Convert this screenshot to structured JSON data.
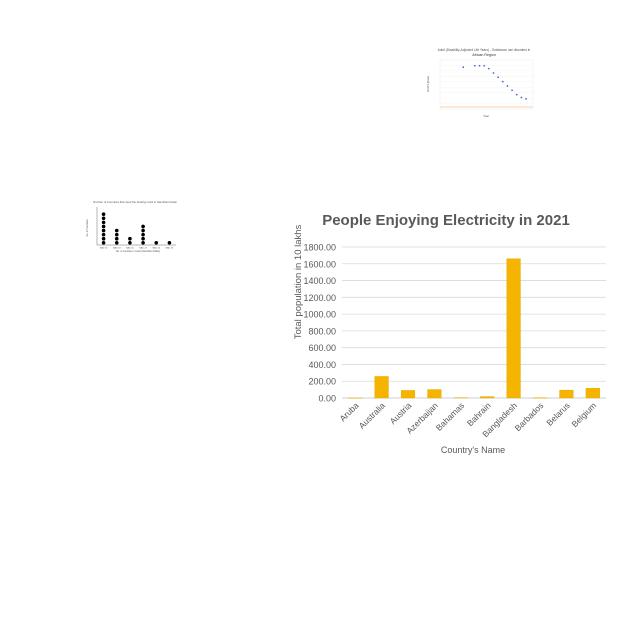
{
  "chart_data": [
    {
      "type": "bar",
      "title": "People Enjoying Electricity in 2021",
      "xlabel": "Country's Name",
      "ylabel": "Total population in 10 lakhs",
      "categories": [
        "Aruba",
        "Australia",
        "Austria",
        "Azerbaijan",
        "Bahamas",
        "Bahrain",
        "Bangladesh",
        "Barbados",
        "Belarus",
        "Belgium"
      ],
      "values": [
        0.1,
        257,
        90,
        101,
        3.9,
        17,
        1660,
        2.8,
        94,
        116
      ],
      "ylim": [
        0,
        1800
      ],
      "yticks": [
        "0.00",
        "200.00",
        "400.00",
        "600.00",
        "800.00",
        "1000.00",
        "1200.00",
        "1400.00",
        "1600.00",
        "1800.00"
      ],
      "bar_color": "#f4b400",
      "grid": true
    },
    {
      "type": "scatter",
      "title": "Adult (Disability-Adjusted Life Years) - Substance use disorders in",
      "subtitle": "African Region",
      "xlabel": "Year",
      "ylabel": "DALYs (Rate)",
      "x": [
        1995,
        2000,
        2002,
        2004,
        2006,
        2008,
        2010,
        2012,
        2014,
        2016,
        2018,
        2020,
        2022
      ],
      "values": [
        1.77,
        1.78,
        1.78,
        1.78,
        1.76,
        1.73,
        1.7,
        1.67,
        1.64,
        1.61,
        1.58,
        1.56,
        1.55
      ],
      "xlim": [
        1985,
        2025
      ],
      "ylim": [
        1.48,
        1.82
      ],
      "point_color": "#4472c4",
      "baseline_color": "#f4a460"
    },
    {
      "type": "scatter",
      "title": "Number of Countries that used the Fueling costs in Namibian Dollar",
      "xlabel": "No. of countries / Costs (Namibian Dollar)",
      "ylabel": "No. of Countries",
      "categories": [
        "NAD 16",
        "NAD 18",
        "NAD 20",
        "NAD 22",
        "NAD 24",
        "NAD 26"
      ],
      "values": [
        8,
        4,
        2,
        5,
        1,
        1
      ],
      "ylim": [
        0,
        9
      ],
      "point_color": "#000000"
    }
  ]
}
